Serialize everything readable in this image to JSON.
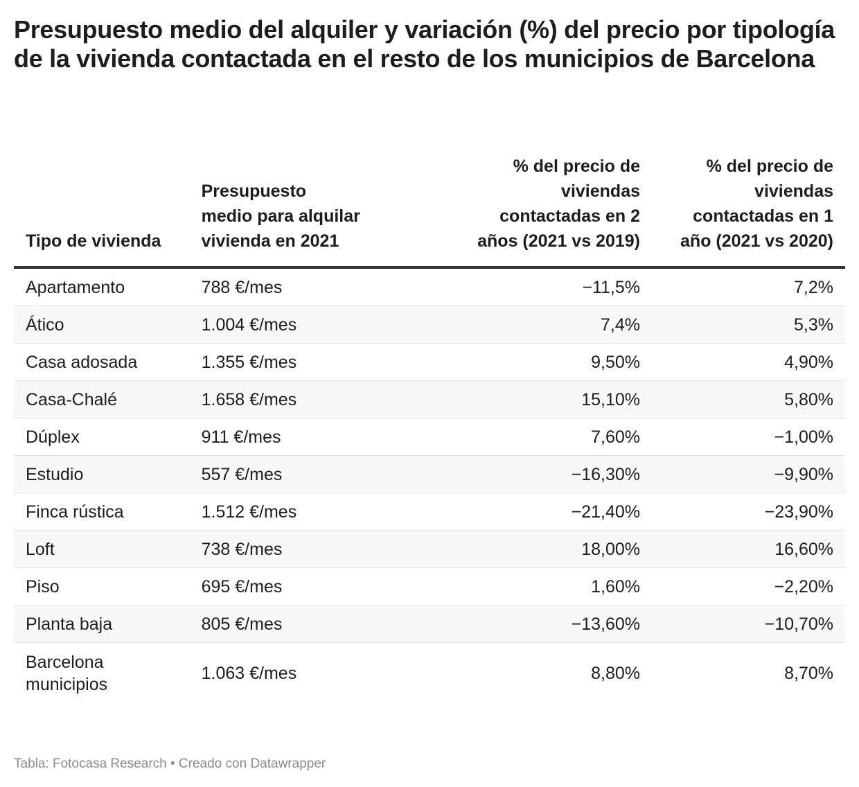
{
  "title": "Presupuesto medio del alquiler y variación (%) del precio por tipología de la vivienda contactada en el resto de los municipios de Barcelona",
  "footer": "Tabla: Fotocasa Research • Creado con Datawrapper",
  "colors": {
    "text": "#1d1d1d",
    "header_rule": "#333333",
    "stripe": "#f8f8f8",
    "footer": "#8a8a8a"
  },
  "chart_data": {
    "type": "table",
    "columns": [
      "Tipo de vivienda",
      "Presupuesto medio para alquilar vivienda en 2021",
      "% del precio de viviendas contactadas en 2 años (2021 vs 2019)",
      "% del precio de viviendas contactadas en 1 año (2021 vs 2020)"
    ],
    "rows": [
      [
        "Apartamento",
        "788 €/mes",
        "−11,5%",
        "7,2%"
      ],
      [
        "Ático",
        "1.004 €/mes",
        "7,4%",
        "5,3%"
      ],
      [
        "Casa adosada",
        "1.355 €/mes",
        "9,50%",
        "4,90%"
      ],
      [
        "Casa-Chalé",
        "1.658 €/mes",
        "15,10%",
        "5,80%"
      ],
      [
        "Dúplex",
        "911 €/mes",
        "7,60%",
        "−1,00%"
      ],
      [
        "Estudio",
        "557 €/mes",
        "−16,30%",
        "−9,90%"
      ],
      [
        "Finca rústica",
        "1.512 €/mes",
        "−21,40%",
        "−23,90%"
      ],
      [
        "Loft",
        "738 €/mes",
        "18,00%",
        "16,60%"
      ],
      [
        "Piso",
        "695 €/mes",
        "1,60%",
        "−2,20%"
      ],
      [
        "Planta baja",
        "805 €/mes",
        "−13,60%",
        "−10,70%"
      ],
      [
        "Barcelona municipios",
        "1.063 €/mes",
        "8,80%",
        "8,70%"
      ]
    ]
  }
}
